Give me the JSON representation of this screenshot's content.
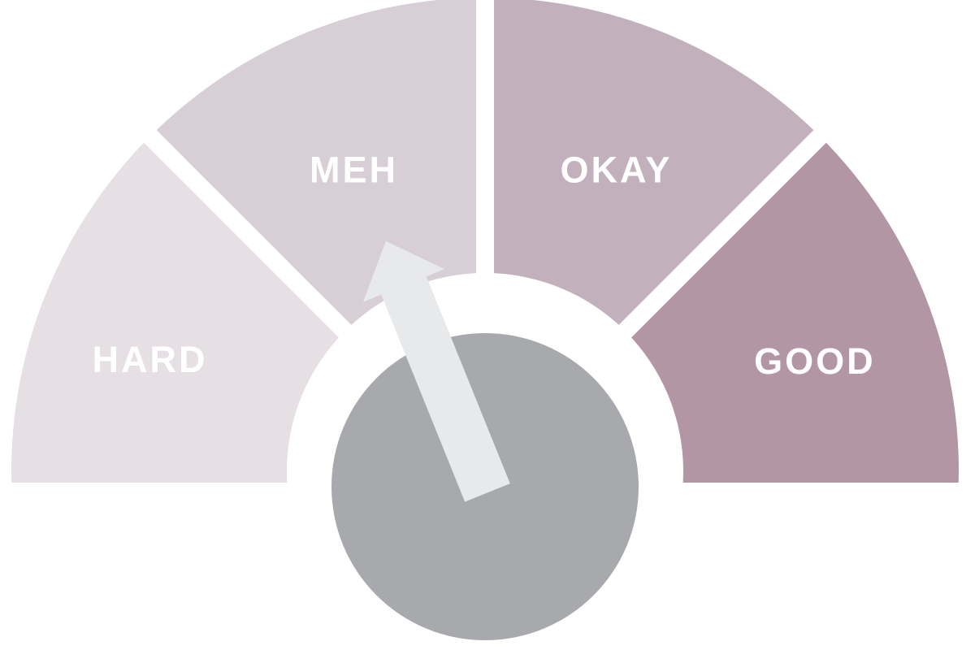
{
  "background_color": "#ffffff",
  "chart_data": {
    "type": "gauge",
    "categories": [
      "HARD",
      "MEH",
      "OKAY",
      "GOOD"
    ],
    "segments": [
      {
        "label": "HARD",
        "color": "#e6e0e4",
        "start_deg": 184,
        "end_deg": 135,
        "label_deg": 161.5,
        "label_radius": 435
      },
      {
        "label": "MEH",
        "color": "#d8ced5",
        "start_deg": 135,
        "end_deg": 90,
        "label_deg": 113.5,
        "label_radius": 405
      },
      {
        "label": "OKAY",
        "color": "#c2b1bc",
        "start_deg": 90,
        "end_deg": 45,
        "label_deg": 66.5,
        "label_radius": 405
      },
      {
        "label": "GOOD",
        "color": "#b396a4",
        "start_deg": 45,
        "end_deg": -4,
        "label_deg": 18.5,
        "label_radius": 428
      }
    ],
    "needle": {
      "target": "MEH",
      "angle_deg": 112,
      "color": "#e7e9eb"
    },
    "hub_color": "#a8a9ad",
    "label_color": "#ffffff",
    "divider_color": "#ffffff",
    "layout": {
      "orientation": "semicircle-up",
      "segment_span_deg": 45,
      "legend": false,
      "grid": false
    }
  }
}
